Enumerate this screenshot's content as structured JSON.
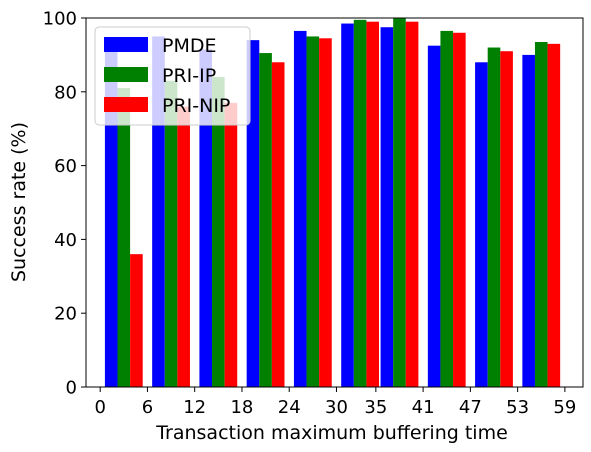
{
  "chart_data": {
    "type": "bar",
    "xlabel": "Transaction maximum buffering time",
    "ylabel": "Success rate (%)",
    "ylim": [
      0,
      100
    ],
    "yticks": [
      "0",
      "20",
      "40",
      "60",
      "80",
      "100"
    ],
    "xticks": [
      "0",
      "6",
      "12",
      "18",
      "24",
      "30",
      "35",
      "41",
      "47",
      "53",
      "59"
    ],
    "categories": [
      "3",
      "9",
      "15",
      "21",
      "27",
      "33",
      "38",
      "44",
      "50",
      "56"
    ],
    "legend_position": "top-left",
    "grid": false,
    "series": [
      {
        "name": "PMDE",
        "color": "#0000ff",
        "values": [
          91.5,
          95.0,
          91.5,
          94.0,
          96.5,
          98.5,
          97.5,
          92.5,
          88.0,
          90.0
        ]
      },
      {
        "name": "PRI-IP",
        "color": "#008000",
        "values": [
          81.0,
          83.0,
          84.0,
          90.5,
          95.0,
          99.5,
          100.0,
          96.5,
          92.0,
          93.5
        ]
      },
      {
        "name": "PRI-NIP",
        "color": "#ff0000",
        "values": [
          36.0,
          76.0,
          77.0,
          88.0,
          94.5,
          99.0,
          99.0,
          96.0,
          91.0,
          93.0
        ]
      }
    ]
  }
}
